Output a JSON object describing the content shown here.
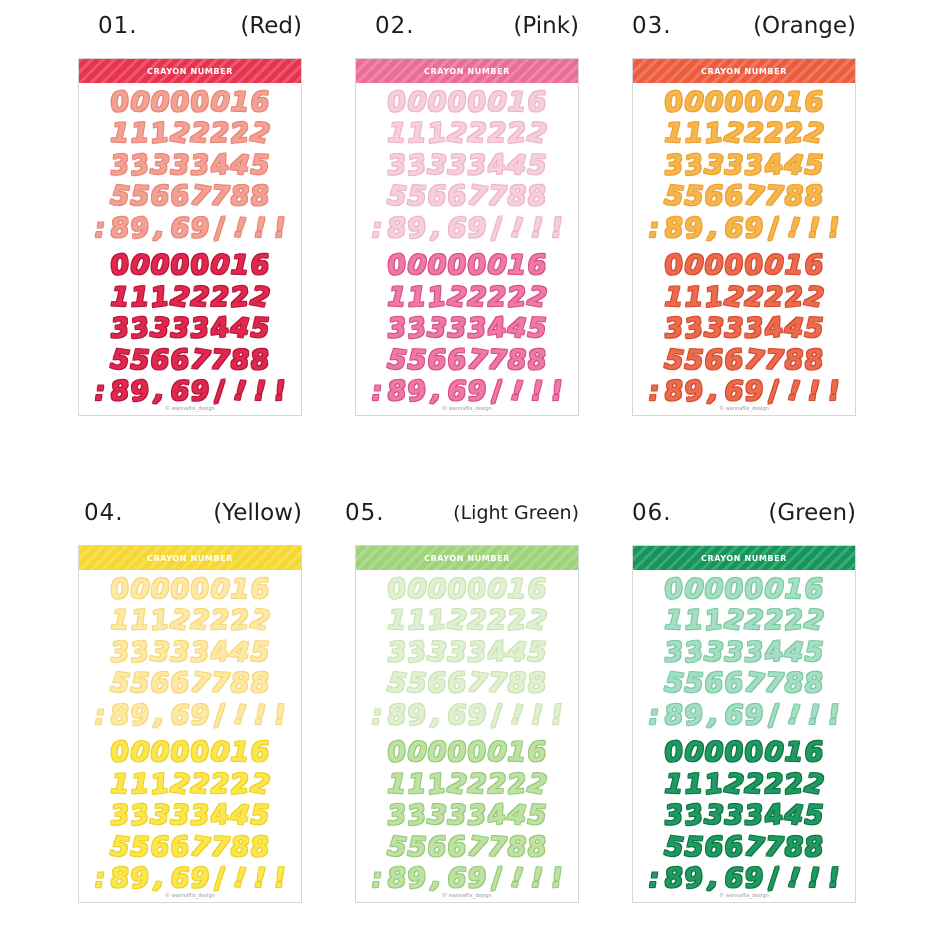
{
  "sheet_title": "CRAYON NUMBER",
  "credit": "© wannaflix_design",
  "rows": [
    "00000016",
    "11122222",
    "33333445",
    "55667788",
    ":89,69/!!!"
  ],
  "variants": [
    {
      "number": "01.",
      "label": "(Red)",
      "header": "#e8334f",
      "light": "#f3a095",
      "light_edge": "#e88574",
      "dark": "#e0284f",
      "dark_edge": "#b8143a"
    },
    {
      "number": "02.",
      "label": "(Pink)",
      "header": "#ea6d98",
      "light": "#f6cfdc",
      "light_edge": "#eeb3c6",
      "dark": "#ee79a6",
      "dark_edge": "#d84d85"
    },
    {
      "number": "03.",
      "label": "(Orange)",
      "header": "#ec5d3e",
      "light": "#f7b64a",
      "light_edge": "#eba033",
      "dark": "#ee6a4c",
      "dark_edge": "#d24b30"
    },
    {
      "number": "04.",
      "label": "(Yellow)",
      "header": "#f5d832",
      "light": "#fde8a4",
      "light_edge": "#f6d778",
      "dark": "#fbe74d",
      "dark_edge": "#eed022"
    },
    {
      "number": "05.",
      "label": "(Light Green)",
      "header": "#9fd37a",
      "light": "#e1f0d2",
      "light_edge": "#c9e3b2",
      "dark": "#bfe2a3",
      "dark_edge": "#94c978"
    },
    {
      "number": "06.",
      "label": "(Green)",
      "header": "#14955a",
      "light": "#a6dec3",
      "light_edge": "#76c9a3",
      "dark": "#1f9a60",
      "dark_edge": "#0c7443"
    }
  ]
}
